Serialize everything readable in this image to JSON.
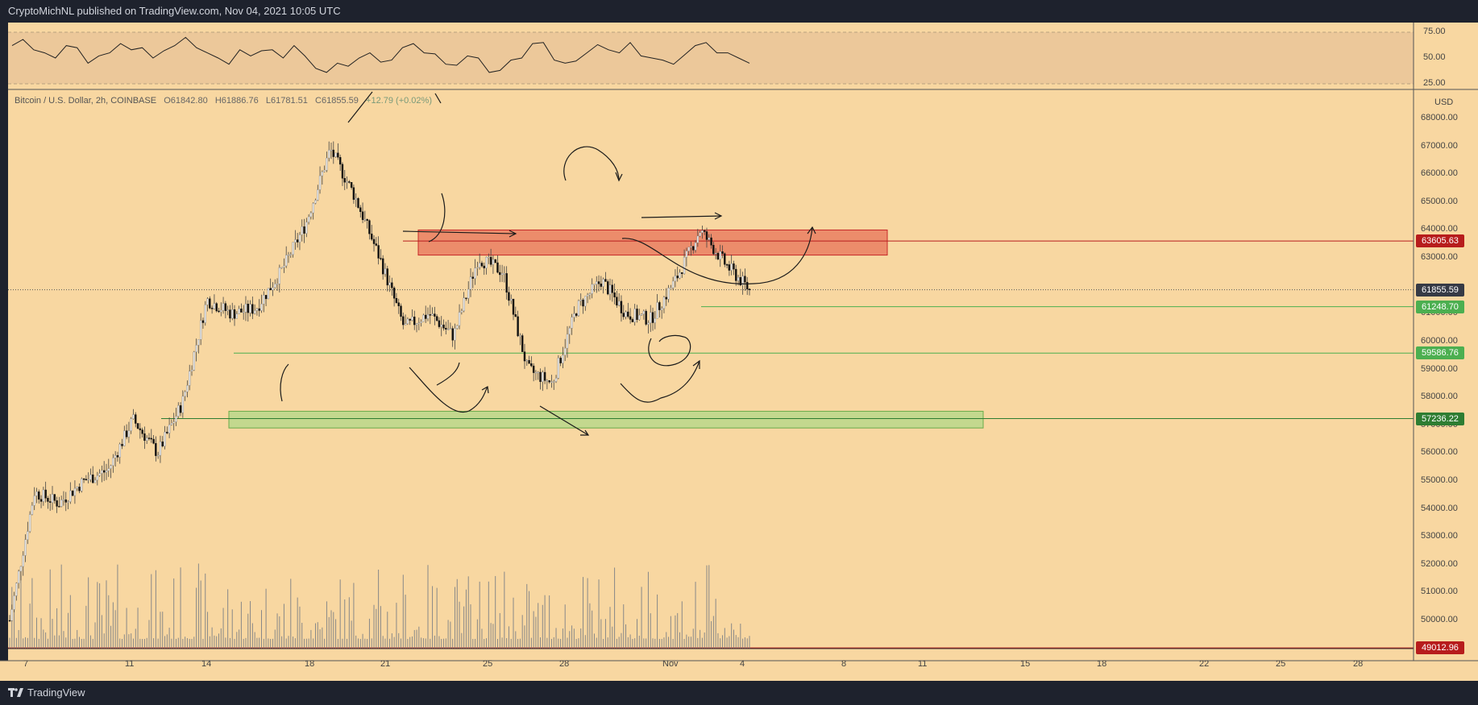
{
  "header": {
    "publisher": "CryptoMichNL published on TradingView.com, Nov 04, 2021 10:05 UTC"
  },
  "footer": {
    "brand": "TradingView"
  },
  "legend": {
    "symbol": "Bitcoin / U.S. Dollar, 2h, COINBASE",
    "open": "O61842.80",
    "high": "H61886.76",
    "low": "L61781.51",
    "close": "C61855.59",
    "change": "+12.79 (+0.02%)"
  },
  "price_axis": {
    "currency": "USD",
    "ticks": [
      "68000.00",
      "67000.00",
      "66000.00",
      "65000.00",
      "64000.00",
      "63000.00",
      "61000.00",
      "60000.00",
      "59000.00",
      "58000.00",
      "57000.00",
      "56000.00",
      "55000.00",
      "54000.00",
      "53000.00",
      "52000.00",
      "51000.00",
      "50000.00"
    ],
    "tags": [
      {
        "label": "63605.63",
        "color": "#b71c1c"
      },
      {
        "label": "61855.59",
        "color": "#363a45"
      },
      {
        "label": "61248.70",
        "color": "#4caf50"
      },
      {
        "label": "59586.76",
        "color": "#4caf50"
      },
      {
        "label": "57236.22",
        "color": "#2e7d32"
      },
      {
        "label": "49012.96",
        "color": "#b71c1c"
      }
    ]
  },
  "rsi_axis": {
    "ticks": [
      "75.00",
      "50.00",
      "25.00"
    ]
  },
  "time_axis": {
    "ticks": [
      "7",
      "11",
      "14",
      "18",
      "21",
      "25",
      "28",
      "Nov",
      "4",
      "8",
      "11",
      "15",
      "18",
      "22",
      "25",
      "28"
    ]
  },
  "colors": {
    "background": "#f8d7a1",
    "rsi_band": "#ecc89a",
    "resistance_zone": "#e8735a",
    "support_zone": "#b5d88a"
  },
  "chart_data": {
    "type": "candlestick",
    "title": "Bitcoin / U.S. Dollar, 2h, COINBASE",
    "timeframe": "2h",
    "x_range": [
      "Oct 6, 2021",
      "Nov 4, 2021"
    ],
    "y_range": [
      49000,
      68500
    ],
    "last_price": 61855.59,
    "price_path": [
      {
        "date": "Oct 6",
        "close": 50000
      },
      {
        "date": "Oct 7",
        "close": 54600
      },
      {
        "date": "Oct 9",
        "close": 54200
      },
      {
        "date": "Oct 11",
        "close": 55000
      },
      {
        "date": "Oct 12",
        "close": 55400
      },
      {
        "date": "Oct 13",
        "close": 57200
      },
      {
        "date": "Oct 14",
        "close": 56000
      },
      {
        "date": "Oct 15",
        "close": 57800
      },
      {
        "date": "Oct 16",
        "close": 61500
      },
      {
        "date": "Oct 17",
        "close": 61000
      },
      {
        "date": "Oct 18",
        "close": 61200
      },
      {
        "date": "Oct 19",
        "close": 62500
      },
      {
        "date": "Oct 20",
        "close": 64200
      },
      {
        "date": "Oct 20",
        "close": 66900
      },
      {
        "date": "Oct 21",
        "close": 65200
      },
      {
        "date": "Oct 21",
        "close": 63000
      },
      {
        "date": "Oct 22",
        "close": 60500
      },
      {
        "date": "Oct 23",
        "close": 61000
      },
      {
        "date": "Oct 24",
        "close": 60200
      },
      {
        "date": "Oct 25",
        "close": 63000
      },
      {
        "date": "Oct 26",
        "close": 62500
      },
      {
        "date": "Oct 27",
        "close": 59000
      },
      {
        "date": "Oct 28",
        "close": 58500
      },
      {
        "date": "Oct 29",
        "close": 61200
      },
      {
        "date": "Oct 30",
        "close": 62200
      },
      {
        "date": "Oct 31",
        "close": 61000
      },
      {
        "date": "Nov 1",
        "close": 60800
      },
      {
        "date": "Nov 2",
        "close": 62200
      },
      {
        "date": "Nov 2",
        "close": 64000
      },
      {
        "date": "Nov 3",
        "close": 62800
      },
      {
        "date": "Nov 4",
        "close": 61855.59
      }
    ],
    "horizontal_levels": [
      63605.63,
      61248.7,
      59586.76,
      57236.22,
      49012.96
    ],
    "zones": [
      {
        "type": "resistance",
        "from": 63100,
        "to": 64000
      },
      {
        "type": "support",
        "from": 56900,
        "to": 57500
      }
    ],
    "indicator": {
      "name": "RSI",
      "levels": [
        75,
        50,
        25
      ],
      "values": [
        62,
        68,
        58,
        55,
        50,
        62,
        60,
        45,
        52,
        55,
        64,
        58,
        60,
        50,
        57,
        62,
        70,
        60,
        55,
        50,
        44,
        58,
        52,
        57,
        58,
        50,
        62,
        52,
        40,
        36,
        45,
        42,
        50,
        55,
        46,
        48,
        60,
        64,
        55,
        54,
        44,
        43,
        52,
        50,
        36,
        38,
        48,
        50,
        64,
        65,
        48,
        45,
        47,
        55,
        63,
        58,
        55,
        65,
        52,
        50,
        48,
        44,
        53,
        62,
        65,
        55,
        55,
        50,
        45
      ]
    }
  }
}
